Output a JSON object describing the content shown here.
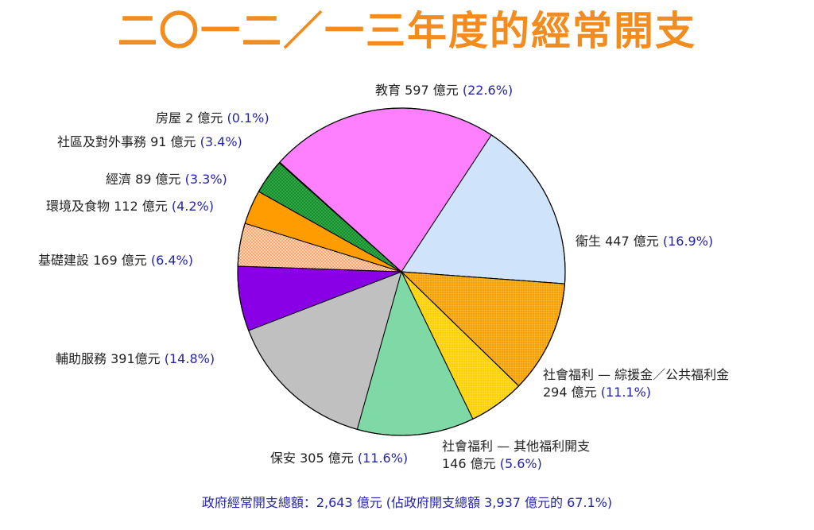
{
  "title": "二〇一二／一三年度的經常開支",
  "footer": "政府經常開支總額：2,643 億元 (佔政府開支總額 3,937 億元的 67.1%)",
  "chart_data": {
    "type": "pie",
    "title": "二〇一二／一三年度的經常開支",
    "slices": [
      {
        "label": "教育",
        "value": 597,
        "value_text": "597 億元",
        "percent": "(22.6%)",
        "color": "#ff80ff",
        "pattern": "none"
      },
      {
        "label": "衞生",
        "value": 447,
        "value_text": "447 億元",
        "percent": "(16.9%)",
        "color": "#cfe4fa",
        "pattern": "none"
      },
      {
        "label": "社會福利 — 綜援金／公共福利金",
        "value": 294,
        "value_text": "294 億元",
        "percent": "(11.1%)",
        "color": "#f5a000",
        "pattern": "grid"
      },
      {
        "label": "社會福利 — 其他福利開支",
        "value": 146,
        "value_text": "146 億元",
        "percent": "(5.6%)",
        "color": "#ffd000",
        "pattern": "grid"
      },
      {
        "label": "保安",
        "value": 305,
        "value_text": "305 億元",
        "percent": "(11.6%)",
        "color": "#7fd9a6",
        "pattern": "none"
      },
      {
        "label": "輔助服務",
        "value": 391,
        "value_text": "391億元",
        "percent": "(14.8%)",
        "color": "#c0c0c0",
        "pattern": "none"
      },
      {
        "label": "基礎建設",
        "value": 169,
        "value_text": "169 億元",
        "percent": "(6.4%)",
        "color": "#8a00e6",
        "pattern": "none"
      },
      {
        "label": "環境及食物",
        "value": 112,
        "value_text": "112 億元",
        "percent": "(4.2%)",
        "color": "#f4b48a",
        "pattern": "hatch"
      },
      {
        "label": "經濟",
        "value": 89,
        "value_text": "89 億元",
        "percent": "(3.3%)",
        "color": "#ff9c00",
        "pattern": "none"
      },
      {
        "label": "社區及對外事務",
        "value": 91,
        "value_text": "91 億元",
        "percent": "(3.4%)",
        "color": "#2eaa44",
        "pattern": "checker"
      },
      {
        "label": "房屋",
        "value": 2,
        "value_text": "2 億元",
        "percent": "(0.1%)",
        "color": "#1c2a80",
        "pattern": "none"
      }
    ]
  }
}
